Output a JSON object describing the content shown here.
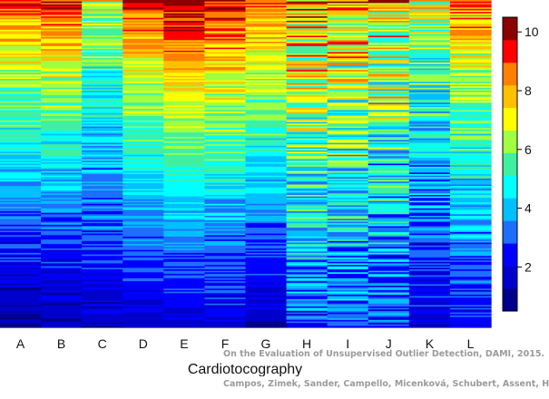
{
  "chart_data": {
    "type": "heatmap",
    "title": "",
    "xlabel": "Cardiotocography",
    "ylabel": "",
    "categories": [
      "A",
      "B",
      "C",
      "D",
      "E",
      "F",
      "G",
      "H",
      "I",
      "J",
      "K",
      "L"
    ],
    "rows": 220,
    "colorbar": {
      "range": [
        0.5,
        10.5
      ],
      "ticks": [
        2,
        4,
        6,
        8,
        10
      ],
      "colors": [
        "#00008B",
        "#0000CD",
        "#0000FF",
        "#1E6FFF",
        "#00BFFF",
        "#00FFFF",
        "#40F0A0",
        "#A0FF40",
        "#FFFF00",
        "#FFC000",
        "#FF7F00",
        "#FF0000",
        "#8B0000"
      ]
    },
    "column_profiles": [
      {
        "category": "A",
        "start": 9.0,
        "end": 1.0,
        "noise": 1.3
      },
      {
        "category": "B",
        "start": 9.3,
        "end": 1.2,
        "noise": 1.3
      },
      {
        "category": "C",
        "start": 7.0,
        "end": 1.5,
        "noise": 1.4
      },
      {
        "category": "D",
        "start": 9.5,
        "end": 1.6,
        "noise": 1.0
      },
      {
        "category": "E",
        "start": 10.4,
        "end": 1.7,
        "noise": 0.9
      },
      {
        "category": "F",
        "start": 9.8,
        "end": 1.8,
        "noise": 1.4
      },
      {
        "category": "G",
        "start": 9.0,
        "end": 1.4,
        "noise": 1.1
      },
      {
        "category": "H",
        "start": 8.5,
        "end": 3.0,
        "noise": 2.6
      },
      {
        "category": "I",
        "start": 8.2,
        "end": 2.8,
        "noise": 2.8
      },
      {
        "category": "J",
        "start": 8.0,
        "end": 2.6,
        "noise": 2.8
      },
      {
        "category": "K",
        "start": 7.0,
        "end": 1.8,
        "noise": 1.9
      },
      {
        "category": "L",
        "start": 8.5,
        "end": 2.2,
        "noise": 1.6
      }
    ]
  },
  "watermark": {
    "line1": "On the Evaluation of Unsupervised Outlier Detection, DAMI, 2015.",
    "line2": "Campos, Zimek, Sander, Campello, Micenková, Schubert, Assent, Houle"
  }
}
